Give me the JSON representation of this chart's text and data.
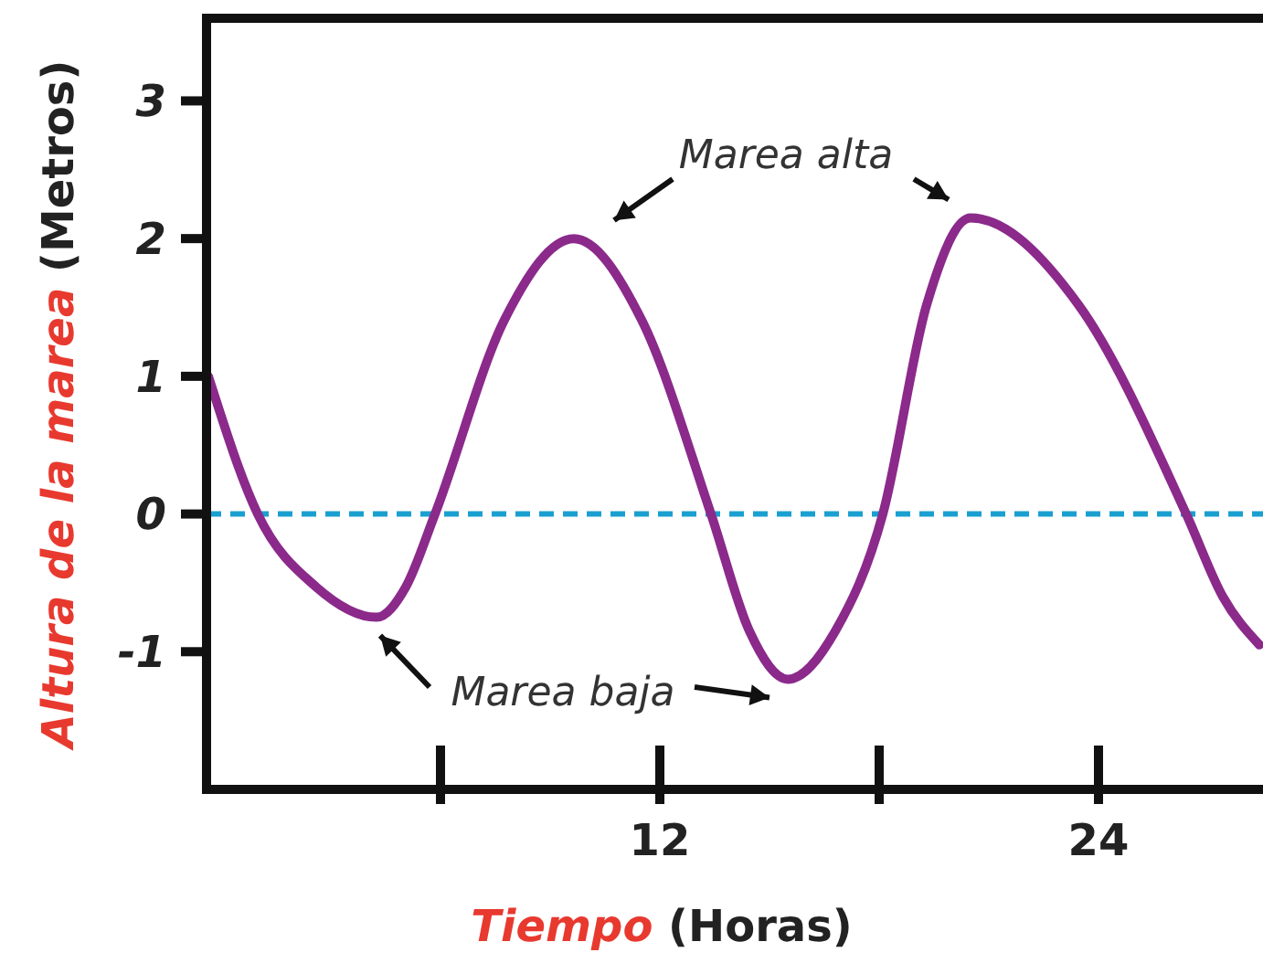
{
  "chart_data": {
    "type": "line",
    "xlabel": "Tiempo (Horas)",
    "ylabel": "Altura de la marea (Metros)",
    "xlim": [
      -0.4,
      28.5
    ],
    "ylim": [
      -2,
      3.6
    ],
    "xticks": [
      12,
      24
    ],
    "yticks": [
      3,
      2,
      1,
      0,
      -1
    ],
    "series": [
      {
        "color": "#8b2a8b",
        "x": [
          -0.35,
          1,
          2.6,
          4.25,
          5.05,
          5.85,
          7.75,
          9.65,
          11.5,
          13.4,
          14.45,
          15.5,
          16.8,
          18.1,
          19.3,
          20.5,
          23.45,
          26.4,
          27.4,
          28.4
        ],
        "values": [
          1,
          0,
          -0.53,
          -0.75,
          -0.53,
          0,
          1.41,
          2.0,
          1.41,
          0,
          -0.85,
          -1.2,
          -0.85,
          0,
          1.52,
          2.15,
          1.52,
          0,
          -0.6,
          -0.95
        ]
      }
    ],
    "ref_lines": [
      {
        "axis": "y",
        "value": 0,
        "color": "#1aa0d0",
        "line_style": "dashed"
      }
    ],
    "annotations": [
      "Marea alta",
      "Marea baja"
    ],
    "grid": false,
    "marker": "none",
    "line_style": "solid"
  }
}
